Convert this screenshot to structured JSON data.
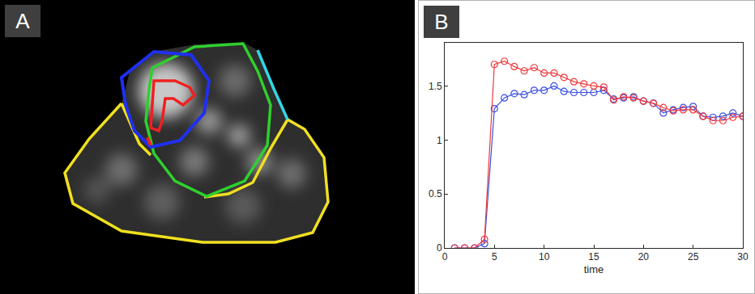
{
  "figure_labels": [
    "A",
    "B"
  ],
  "chart_data": {
    "type": "line",
    "x": [
      1,
      2,
      3,
      4,
      5,
      6,
      7,
      8,
      9,
      10,
      11,
      12,
      13,
      14,
      15,
      16,
      17,
      18,
      19,
      20,
      21,
      22,
      23,
      24,
      25,
      26,
      27,
      28,
      29,
      30
    ],
    "series": [
      {
        "color": "#3b4fe0",
        "values": [
          0,
          0,
          0,
          0.04,
          1.29,
          1.39,
          1.43,
          1.42,
          1.46,
          1.46,
          1.5,
          1.45,
          1.44,
          1.44,
          1.44,
          1.46,
          1.38,
          1.39,
          1.4,
          1.36,
          1.34,
          1.25,
          1.28,
          1.3,
          1.31,
          1.22,
          1.21,
          1.22,
          1.25,
          1.22
        ]
      },
      {
        "color": "#f0383c",
        "values": [
          0,
          0,
          0,
          0.08,
          1.7,
          1.73,
          1.68,
          1.64,
          1.67,
          1.62,
          1.62,
          1.58,
          1.54,
          1.52,
          1.5,
          1.49,
          1.37,
          1.4,
          1.39,
          1.36,
          1.34,
          1.3,
          1.27,
          1.28,
          1.28,
          1.22,
          1.18,
          1.18,
          1.21,
          1.22
        ]
      }
    ],
    "x_label": "time",
    "xlim": [
      0,
      30
    ],
    "xticks": [
      0,
      5,
      10,
      15,
      20,
      25,
      30
    ],
    "ylim": [
      0,
      1.9
    ],
    "yticks": [
      0,
      0.5,
      1,
      1.5
    ],
    "marker": "circle-open",
    "grid": false
  }
}
